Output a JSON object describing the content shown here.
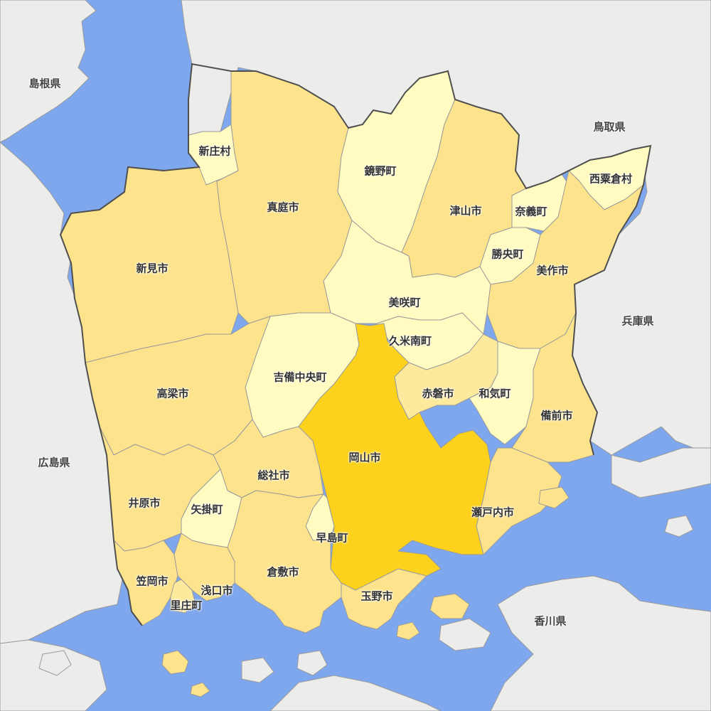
{
  "colors": {
    "sea": "#7ea7ee",
    "neighbor_land": "#ececea",
    "okayama_city": "#fcd21d",
    "tier_high": "#fde48c",
    "tier_mid": "#fdea9d",
    "tier_low": "#fffbc1",
    "border": "#9a9a9a",
    "prefecture_border": "#4f4f4f"
  },
  "prefectures": {
    "shimane": "島根県",
    "tottori": "鳥取県",
    "hyogo": "兵庫県",
    "hiroshima": "広島県",
    "kagawa": "香川県"
  },
  "municipalities": {
    "shinjo": "新庄村",
    "kagamino": "鏡野町",
    "maniwa": "真庭市",
    "tsuyama": "津山市",
    "nishiawakura": "西粟倉村",
    "nagi": "奈義町",
    "shoo": "勝央町",
    "mimasaka": "美作市",
    "niimi": "新見市",
    "misaki": "美咲町",
    "kumenan": "久米南町",
    "kibichuo": "吉備中央町",
    "takahashi": "高梁市",
    "akaiwa": "赤磐市",
    "wake": "和気町",
    "bizen": "備前市",
    "okayama": "岡山市",
    "soja": "総社市",
    "ibara": "井原市",
    "yakage": "矢掛町",
    "setouchi": "瀬戸内市",
    "hayashima": "早島町",
    "kasaoka": "笠岡市",
    "kurashiki": "倉敷市",
    "asakuchi": "浅口市",
    "satosho": "里庄町",
    "tamano": "玉野市"
  }
}
